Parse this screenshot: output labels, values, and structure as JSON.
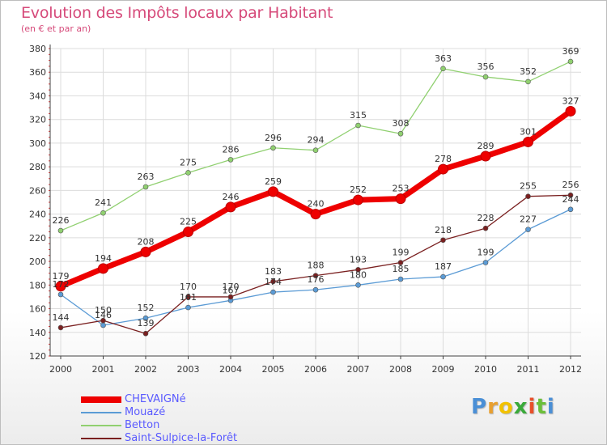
{
  "header": {
    "title": "Evolution des Impôts locaux par Habitant",
    "subtitle": "(en € et par an)"
  },
  "logo": {
    "text": "Proxiti",
    "letter_colors": [
      "#4a8fd6",
      "#e8a030",
      "#f2c200",
      "#3aaa3a",
      "#e84f2a",
      "#6cbf3a",
      "#4a8fd6"
    ]
  },
  "chart_data": {
    "type": "line",
    "title": "Evolution des Impôts locaux par Habitant",
    "subtitle": "(en € et par an)",
    "x": [
      2000,
      2001,
      2002,
      2003,
      2004,
      2005,
      2006,
      2007,
      2008,
      2009,
      2010,
      2011,
      2012
    ],
    "xlabel": "",
    "ylabel": "",
    "ylim": [
      120,
      380
    ],
    "yticks": [
      120,
      140,
      160,
      180,
      200,
      220,
      240,
      260,
      280,
      300,
      320,
      340,
      360,
      380
    ],
    "grid": true,
    "legend_position": "bottom-left",
    "series": [
      {
        "name": "CHEVAIGNé",
        "color": "#ee0000",
        "width": 7,
        "marker": 6,
        "values": [
          179,
          194,
          208,
          225,
          246,
          259,
          240,
          252,
          253,
          278,
          289,
          301,
          327
        ]
      },
      {
        "name": "Mouazé",
        "color": "#5b9bd5",
        "width": 1.3,
        "marker": 3,
        "values": [
          172,
          146,
          152,
          161,
          167,
          174,
          176,
          180,
          185,
          187,
          199,
          227,
          244
        ]
      },
      {
        "name": "Betton",
        "color": "#90d070",
        "width": 1.3,
        "marker": 3,
        "values": [
          226,
          241,
          263,
          275,
          286,
          296,
          294,
          315,
          308,
          363,
          356,
          352,
          369
        ]
      },
      {
        "name": "Saint-Sulpice-la-Forêt",
        "color": "#7a2020",
        "width": 1.3,
        "marker": 3,
        "values": [
          144,
          150,
          139,
          170,
          170,
          183,
          188,
          193,
          199,
          218,
          228,
          255,
          256
        ]
      }
    ],
    "data_labels": [
      [
        "179",
        "194",
        "208",
        "225",
        "246",
        "259",
        "240",
        "252",
        "253",
        "278",
        "289",
        "301",
        "327"
      ],
      [
        "172",
        "146",
        "152",
        "161",
        "167",
        "174",
        "176",
        "180",
        "185",
        "187",
        "199",
        "227",
        "244"
      ],
      [
        "226",
        "241",
        "263",
        "275",
        "286",
        "296",
        "294",
        "315",
        "308",
        "363",
        "356",
        "352",
        "369"
      ],
      [
        "144",
        "150",
        "139",
        "170",
        "170",
        "183",
        "188",
        "193",
        "199",
        "218",
        "228",
        "255",
        "256"
      ]
    ]
  }
}
